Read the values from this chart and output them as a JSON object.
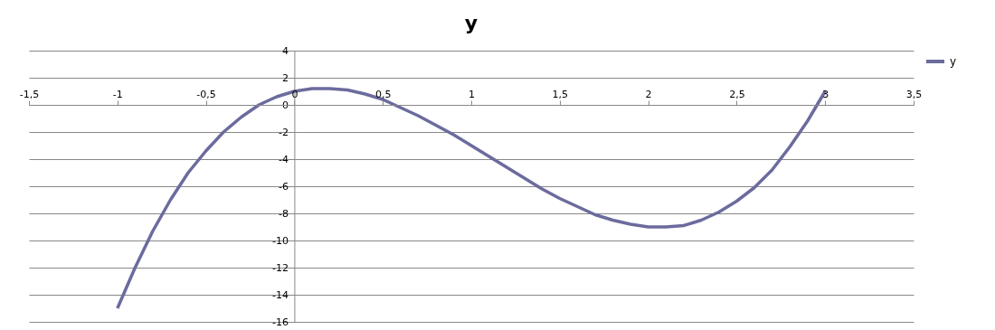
{
  "chart_data": {
    "type": "line",
    "title": "y",
    "x": [
      -1,
      -0.9,
      -0.8,
      -0.7,
      -0.6,
      -0.5,
      -0.4,
      -0.3,
      -0.2,
      -0.1,
      0,
      0.1,
      0.2,
      0.3,
      0.4,
      0.5,
      0.6,
      0.7,
      0.8,
      0.9,
      1,
      1.1,
      1.2,
      1.3,
      1.4,
      1.5,
      1.6,
      1.7,
      1.8,
      1.9,
      2,
      2.1,
      2.2,
      2.3,
      2.4,
      2.5,
      2.6,
      2.7,
      2.8,
      2.9,
      3
    ],
    "series": [
      {
        "name": "y",
        "color": "#6b6b9e",
        "values": [
          -15,
          -12,
          -9.3,
          -7,
          -5,
          -3.4,
          -2,
          -0.9,
          0,
          0.6,
          1,
          1.2,
          1.2,
          1.1,
          0.8,
          0.4,
          -0.2,
          -0.8,
          -1.5,
          -2.2,
          -3,
          -3.8,
          -4.6,
          -5.4,
          -6.2,
          -6.9,
          -7.5,
          -8.1,
          -8.5,
          -8.8,
          -9,
          -9,
          -8.9,
          -8.5,
          -7.9,
          -7.1,
          -6.1,
          -4.8,
          -3.1,
          -1.2,
          1
        ]
      }
    ],
    "xlim": [
      -1.5,
      3.5
    ],
    "xticks": [
      {
        "value": -1.5,
        "label": "-1,5"
      },
      -1,
      {
        "value": -0.5,
        "label": "-0,5"
      },
      0,
      {
        "value": 0.5,
        "label": "0,5"
      },
      1,
      {
        "value": 1.5,
        "label": "1,5"
      },
      2,
      {
        "value": 2.5,
        "label": "2,5"
      },
      3,
      {
        "value": 3.5,
        "label": "3,5"
      }
    ],
    "ylim": [
      -16,
      4
    ],
    "yticks": [
      -16,
      -14,
      -12,
      -10,
      -8,
      -6,
      -4,
      -2,
      0,
      2,
      4
    ],
    "grid": "y",
    "legend": "right",
    "marker": "none",
    "line_style": "solid"
  }
}
